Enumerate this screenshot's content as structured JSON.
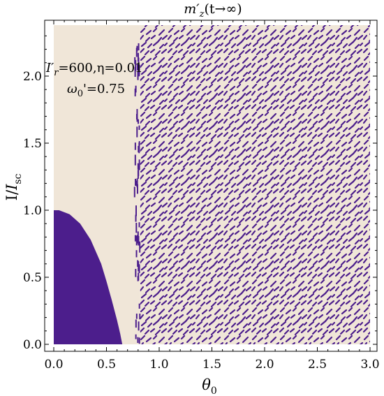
{
  "chart_data": {
    "type": "heatmap",
    "title": "m'z(t→∞)",
    "title_parts": {
      "main": "m′",
      "sub": "z",
      "rest": "(t→∞)"
    },
    "xlabel": "θ0",
    "xlabel_parts": {
      "main": "θ",
      "sub": "0"
    },
    "ylabel": "I/Isc",
    "ylabel_parts": {
      "main": "I/",
      "italic": "I",
      "sub": "sc"
    },
    "xlim": [
      0.0,
      3.0
    ],
    "ylim": [
      0.0,
      2.35
    ],
    "x_ticks": [
      "0.0",
      "0.5",
      "1.0",
      "1.5",
      "2.0",
      "2.5",
      "3.0"
    ],
    "y_ticks": [
      "0.0",
      "0.5",
      "1.0",
      "1.5",
      "2.0"
    ],
    "annotations": {
      "line1": "I'r=600,η=0.01",
      "line1_parts": {
        "main": "I",
        "prime": "′",
        "sub": "r",
        "rest": "=600,η=0.01"
      },
      "line2": "ω0'=0.75",
      "line2_parts": {
        "main": "ω",
        "sub": "0",
        "rest": "'=0.75"
      }
    },
    "colors": {
      "low_state": "#f0e6d8",
      "high_state": "#4c1e8c",
      "background": "#ffffff"
    },
    "regions": [
      {
        "name": "solid-switched-region",
        "state": "high",
        "boundary_x": [
          0.0,
          0.05,
          0.15,
          0.25,
          0.35,
          0.45,
          0.5,
          0.55,
          0.6,
          0.63,
          0.65
        ],
        "boundary_y": [
          1.0,
          1.0,
          0.97,
          0.9,
          0.78,
          0.6,
          0.47,
          0.33,
          0.18,
          0.08,
          0.0
        ]
      },
      {
        "name": "unswitched-region",
        "state": "low",
        "x_range": [
          0.0,
          0.82
        ]
      },
      {
        "name": "chaotic-region",
        "state": "mixed",
        "x_range": [
          0.82,
          3.0
        ]
      }
    ]
  }
}
